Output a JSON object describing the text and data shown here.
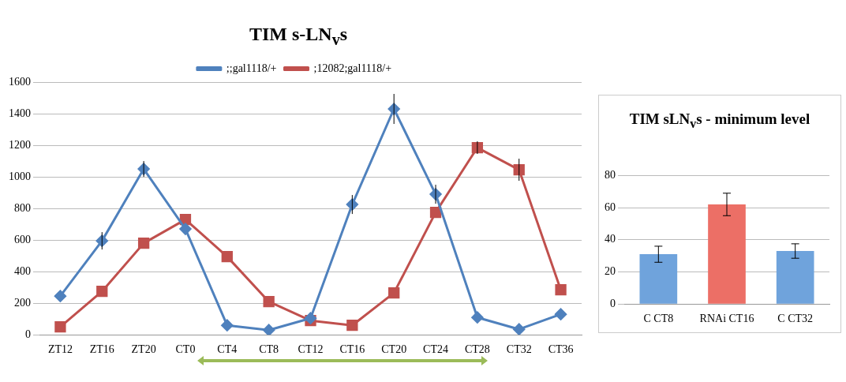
{
  "chart_data": [
    {
      "type": "line",
      "title": "TIM s-LN$_{v}$s",
      "categories": [
        "ZT12",
        "ZT16",
        "ZT20",
        "CT0",
        "CT4",
        "CT8",
        "CT12",
        "CT16",
        "CT20",
        "CT24",
        "CT28",
        "CT32",
        "CT36"
      ],
      "series": [
        {
          "name": ";;gal1118/+",
          "color": "#4f81bd",
          "marker": "diamond",
          "values": [
            245,
            595,
            1050,
            670,
            60,
            30,
            105,
            825,
            1430,
            890,
            110,
            35,
            130
          ],
          "errors": [
            null,
            55,
            50,
            null,
            null,
            null,
            null,
            60,
            95,
            60,
            null,
            null,
            null
          ]
        },
        {
          "name": ";12082;gal1118/+",
          "color": "#c0504d",
          "marker": "square",
          "values": [
            50,
            275,
            580,
            730,
            495,
            210,
            90,
            60,
            265,
            775,
            1185,
            1045,
            285
          ],
          "errors": [
            null,
            null,
            null,
            null,
            null,
            null,
            null,
            null,
            null,
            null,
            40,
            70,
            null
          ]
        }
      ],
      "ylim": [
        0,
        1600
      ],
      "yticks": [
        0,
        200,
        400,
        600,
        800,
        1000,
        1200,
        1400,
        1600
      ],
      "grid": "y",
      "legend": "top"
    },
    {
      "type": "bar",
      "title": "TIM sLN$_{v}$s - minimum level",
      "categories": [
        "C CT8",
        "RNAi CT16",
        "C CT32"
      ],
      "values": [
        31,
        62,
        33
      ],
      "errors": [
        5,
        7,
        4.5
      ],
      "colors": [
        "#6fa3dc",
        "#ec6f66",
        "#6fa3dc"
      ],
      "ylim": [
        0,
        80
      ],
      "yticks": [
        0,
        20,
        40,
        60,
        80
      ],
      "grid": "y"
    }
  ]
}
